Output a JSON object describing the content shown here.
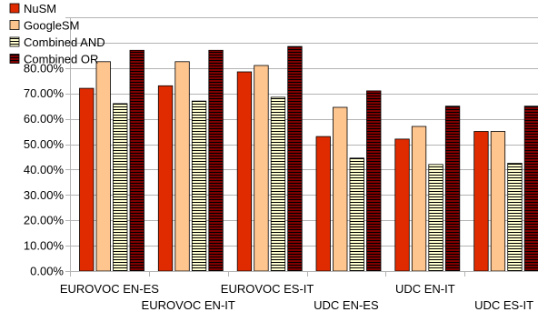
{
  "chart_data": {
    "type": "bar",
    "categories": [
      "EUROVOC EN-ES",
      "EUROVOC EN-IT",
      "EUROVOC ES-IT",
      "UDC EN-ES",
      "UDC EN-IT",
      "UDC ES-IT"
    ],
    "series": [
      {
        "name": "NuSM",
        "values": [
          72,
          73,
          78.5,
          53,
          52,
          55
        ],
        "color": "#e02b00",
        "pattern": "solid"
      },
      {
        "name": "GoogleSM",
        "values": [
          82.5,
          82.5,
          81,
          64.5,
          57,
          55
        ],
        "color": "#ffc58f",
        "pattern": "solid"
      },
      {
        "name": "Combined AND",
        "values": [
          66,
          67,
          68.5,
          44.5,
          42,
          42.5
        ],
        "color": "#ffffd0",
        "pattern": "horizontal-lines"
      },
      {
        "name": "Combined OR",
        "values": [
          87,
          87,
          88.5,
          71,
          65,
          65
        ],
        "color": "#800000",
        "pattern": "horizontal-lines"
      }
    ],
    "y_ticks": [
      "0.00%",
      "10.00%",
      "20.00%",
      "30.00%",
      "40.00%",
      "50.00%",
      "60.00%",
      "70.00%",
      "80.00%"
    ],
    "ylim": [
      0,
      100
    ],
    "grid": true,
    "legend_position": "top-left",
    "title": "",
    "xlabel": "",
    "ylabel": ""
  }
}
